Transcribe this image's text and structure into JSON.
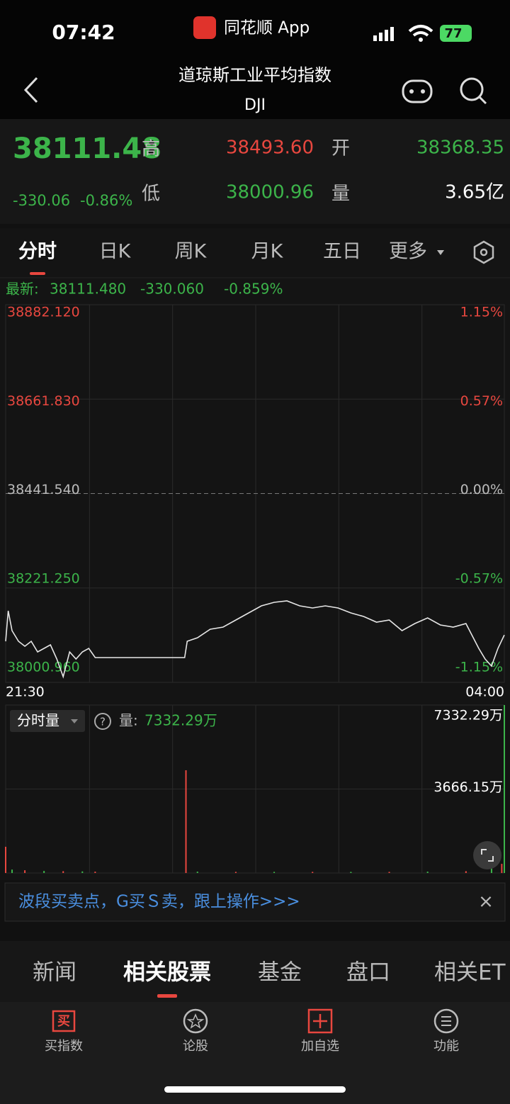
{
  "status_bar": {
    "time": "07:42",
    "app": "同花顺 App",
    "battery": "77"
  },
  "header": {
    "title": "道琼斯工业平均指数",
    "code": "DJI"
  },
  "quote": {
    "price": "38111.48",
    "change": "-330.06",
    "change_pct": "-0.86%",
    "high_label": "高",
    "high": "38493.60",
    "open_label": "开",
    "open": "38368.35",
    "low_label": "低",
    "low": "38000.96",
    "volume_label": "量",
    "volume": "3.65亿"
  },
  "tabs": [
    "分时",
    "日K",
    "周K",
    "月K",
    "五日",
    "更多"
  ],
  "latest": {
    "label": "最新:",
    "price": "38111.480",
    "change": "-330.060",
    "change_pct": "-0.859%"
  },
  "chart_data": [
    {
      "type": "line",
      "x": [
        0,
        2,
        5,
        10,
        15,
        20,
        25,
        30,
        35,
        40,
        45,
        50,
        55,
        60,
        65,
        70,
        100,
        140,
        142,
        150,
        160,
        170,
        180,
        190,
        200,
        210,
        220,
        230,
        240,
        250,
        260,
        270,
        280,
        290,
        300,
        310,
        320,
        330,
        340,
        350,
        360,
        370,
        375,
        380,
        385,
        390
      ],
      "values": [
        38096.9,
        38167.9,
        38121.6,
        38096.9,
        38085.3,
        38096.9,
        38072.0,
        38080.3,
        38088.6,
        38055.5,
        38014.2,
        38072.0,
        38055.5,
        38072.0,
        38080.3,
        38058.8,
        38058.8,
        38058.8,
        38096.9,
        38105.1,
        38124.9,
        38129.9,
        38146.4,
        38163.0,
        38179.5,
        38187.8,
        38191.1,
        38179.5,
        38174.6,
        38179.5,
        38174.6,
        38163.0,
        38154.7,
        38141.5,
        38146.4,
        38121.6,
        38138.2,
        38151.4,
        38134.9,
        38129.9,
        38138.2,
        38080.3,
        38055.5,
        38039.0,
        38080.3,
        38111.48
      ],
      "color": "#e6e6e6",
      "xlim": [
        0,
        390
      ],
      "xticks": [
        {
          "value": 0,
          "label": "21:30"
        },
        {
          "value": 390,
          "label": "04:00"
        }
      ],
      "ylim": [
        38000.96,
        38882.12
      ],
      "yticks": [
        {
          "value": 38882.12,
          "label": "38882.120"
        },
        {
          "value": 38661.83,
          "label": "38661.830"
        },
        {
          "value": 38441.54,
          "label": "38441.540"
        },
        {
          "value": 38221.25,
          "label": "38221.250"
        },
        {
          "value": 38000.96,
          "label": "38000.960"
        }
      ],
      "pct_labels": [
        "1.15%",
        "0.57%",
        "0.00%",
        "-0.57%",
        "-1.15%"
      ],
      "grid": true
    },
    {
      "type": "bar",
      "title": "分时量",
      "value_label": "量:",
      "value_text": "7332.29万",
      "x": [
        0,
        5,
        15,
        30,
        45,
        60,
        70,
        141,
        150,
        180,
        210,
        240,
        270,
        300,
        330,
        360,
        380,
        388,
        390
      ],
      "values": [
        1145,
        150,
        120,
        90,
        80,
        70,
        60,
        4486,
        60,
        50,
        50,
        50,
        50,
        50,
        60,
        80,
        200,
        400,
        7332.29
      ],
      "colors": [
        "#e8473f",
        "#3cb44a",
        "#e8473f",
        "#3cb44a",
        "#e8473f",
        "#3cb44a",
        "#e8473f",
        "#e8473f",
        "#3cb44a",
        "#e8473f",
        "#3cb44a",
        "#e8473f",
        "#3cb44a",
        "#e8473f",
        "#3cb44a",
        "#e8473f",
        "#3cb44a",
        "#e8473f",
        "#3cb44a"
      ],
      "xlim": [
        0,
        390
      ],
      "ylim": [
        0,
        7332.29
      ],
      "yticks": [
        {
          "value": 7332.29,
          "label": "7332.29万"
        },
        {
          "value": 3666.15,
          "label": "3666.15万"
        }
      ],
      "grid": true
    }
  ],
  "banner": {
    "text": "波段买卖点，G买Ｓ卖，跟上操作>>>",
    "close": "×"
  },
  "bottom_tabs": [
    "新闻",
    "相关股票",
    "基金",
    "盘口",
    "相关ET"
  ],
  "nav": {
    "buy_icon": "买",
    "items": [
      "买指数",
      "论股",
      "加自选",
      "功能"
    ]
  }
}
